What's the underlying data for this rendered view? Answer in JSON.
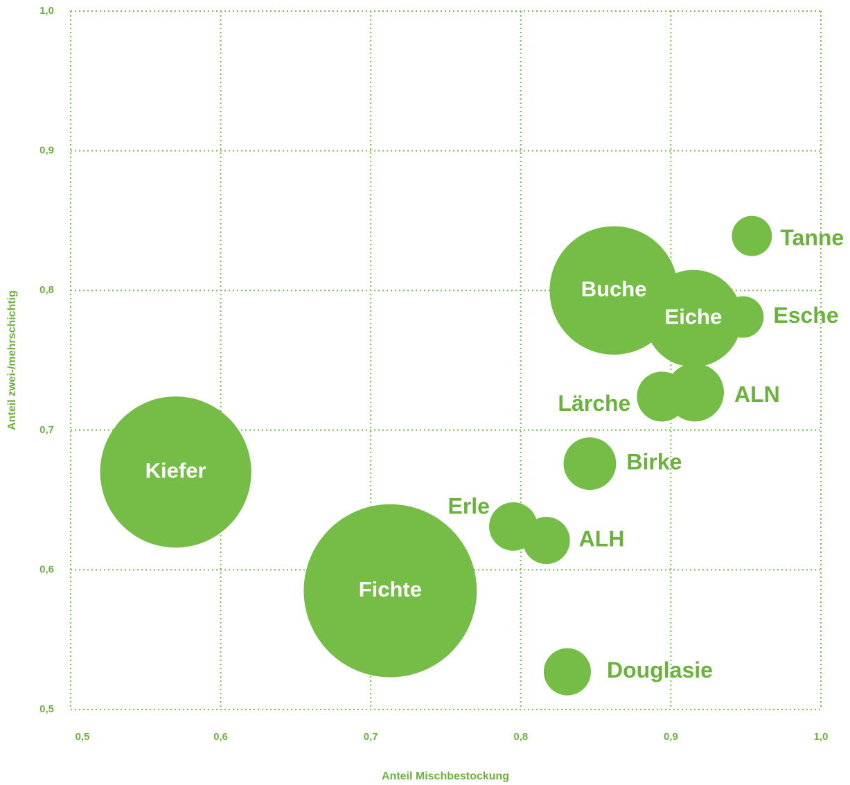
{
  "chart_data": {
    "type": "bubble",
    "x_label": "Anteil Mischbestockung",
    "y_label": "Anteil zwei-/mehrschichtig",
    "labels": [
      "Kiefer",
      "Fichte",
      "Buche",
      "Eiche",
      "Esche",
      "Tanne",
      "ALN",
      "Lärche",
      "Birke",
      "Erle",
      "ALH",
      "Douglasie"
    ],
    "x": [
      0.57,
      0.713,
      0.862,
      0.915,
      0.948,
      0.954,
      0.916,
      0.894,
      0.846,
      0.795,
      0.817,
      0.831
    ],
    "values": [
      0.67,
      0.585,
      0.8,
      0.78,
      0.781,
      0.839,
      0.727,
      0.724,
      0.676,
      0.631,
      0.621,
      0.527
    ],
    "sizes": [
      119,
      156,
      86,
      49,
      9,
      8.4,
      17.6,
      13,
      14.4,
      12.2,
      11.6,
      11.6
    ],
    "color": "#76bd47",
    "xlim": [
      0.5,
      1.0
    ],
    "ylim": [
      0.5,
      1.0
    ],
    "xticks": [
      {
        "value": 0.5,
        "label": "0,5"
      },
      {
        "value": 0.6,
        "label": "0,6"
      },
      {
        "value": 0.7,
        "label": "0,7"
      },
      {
        "value": 0.8,
        "label": "0,8"
      },
      {
        "value": 0.9,
        "label": "0,9"
      },
      {
        "value": 1.0,
        "label": "1,0"
      }
    ],
    "yticks": [
      {
        "value": 0.5,
        "label": "0,5"
      },
      {
        "value": 0.6,
        "label": "0,6"
      },
      {
        "value": 0.7,
        "label": "0,7"
      },
      {
        "value": 0.8,
        "label": "0,8"
      },
      {
        "value": 0.9,
        "label": "0,9"
      },
      {
        "value": 1.0,
        "label": "1,0"
      }
    ],
    "grid": true
  }
}
